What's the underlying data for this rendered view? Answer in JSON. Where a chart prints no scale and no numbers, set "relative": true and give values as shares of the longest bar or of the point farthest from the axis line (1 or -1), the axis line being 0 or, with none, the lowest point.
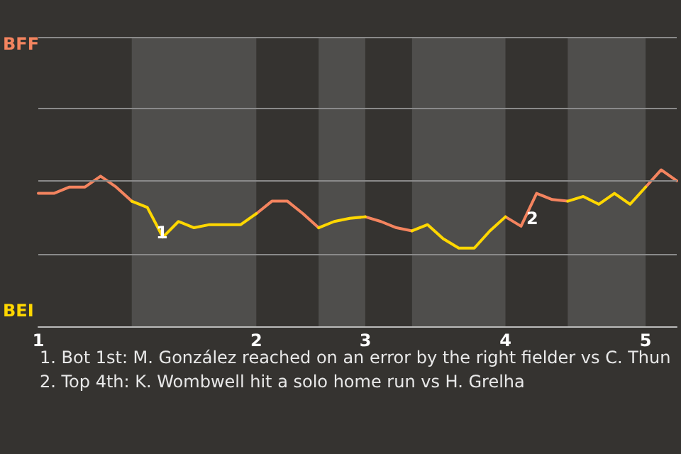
{
  "chart_data": {
    "type": "line",
    "categories": [
      "1",
      null,
      null,
      null,
      null,
      null,
      null,
      null,
      null,
      null,
      null,
      null,
      null,
      null,
      "2",
      null,
      null,
      null,
      null,
      null,
      null,
      "3",
      null,
      null,
      null,
      null,
      null,
      null,
      null,
      null,
      "4",
      null,
      null,
      null,
      null,
      null,
      null,
      null,
      null,
      "5",
      null,
      null
    ],
    "relative": true,
    "series": [
      {
        "color": "#f4845f",
        "values": [
          0.85,
          0.85,
          0.89,
          0.89,
          0.96,
          0.89,
          0.8,
          null,
          null,
          null,
          null,
          null,
          null,
          null,
          0.72,
          0.8,
          0.8,
          0.72,
          0.63,
          null,
          null,
          0.7,
          0.67,
          0.63,
          0.61,
          null,
          null,
          null,
          null,
          null,
          0.7,
          0.64,
          0.85,
          0.81,
          0.8,
          null,
          null,
          null,
          null,
          0.89,
          1,
          0.93
        ]
      },
      {
        "color": "#ffd700",
        "values": [
          null,
          null,
          null,
          null,
          null,
          null,
          0.8,
          0.76,
          0.57,
          0.67,
          0.63,
          0.65,
          0.65,
          0.65,
          0.72,
          null,
          null,
          null,
          0.63,
          0.67,
          0.69,
          0.7,
          null,
          null,
          0.61,
          0.65,
          0.56,
          0.5,
          0.5,
          0.61,
          0.7,
          null,
          null,
          null,
          0.8,
          0.83,
          0.78,
          0.85,
          0.78,
          0.89,
          null,
          null
        ]
      }
    ],
    "marker": "none",
    "line_style": "solid",
    "ref_lines": [
      {
        "axis": "y",
        "value": 0.46,
        "color": "#8a8a8a"
      },
      {
        "axis": "y",
        "value": 0.93,
        "color": "#8a8a8a"
      },
      {
        "axis": "y",
        "value": 1.39,
        "color": "#8a8a8a"
      },
      {
        "axis": "y",
        "value": 1.85,
        "color": "#8a8a8a"
      }
    ],
    "annotations": [
      "BFF",
      "BEI",
      "1",
      "2",
      "1. Bot 1st: M. González reached on an error by the right fielder vs C. Thun",
      "2. Top 4th: K. Wombwell hit a solo home run vs H. Grelha"
    ]
  }
}
